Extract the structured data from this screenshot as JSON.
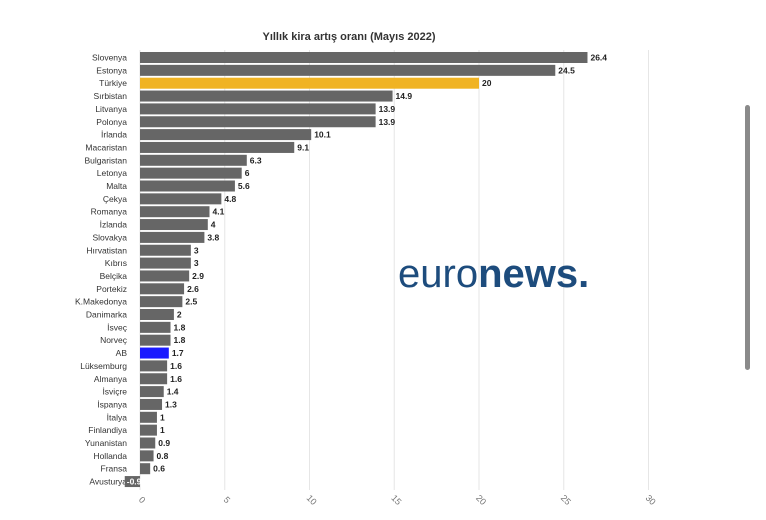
{
  "chart_data": {
    "type": "bar",
    "orientation": "horizontal",
    "title": "Yıllık kira artış oranı (Mayıs 2022)",
    "categories": [
      "Slovenya",
      "Estonya",
      "Türkiye",
      "Sırbistan",
      "Litvanya",
      "Polonya",
      "İrlanda",
      "Macaristan",
      "Bulgaristan",
      "Letonya",
      "Malta",
      "Çekya",
      "Romanya",
      "İzlanda",
      "Slovakya",
      "Hırvatistan",
      "Kıbrıs",
      "Belçika",
      "Portekiz",
      "K.Makedonya",
      "Danimarka",
      "İsveç",
      "Norveç",
      "AB",
      "Lüksemburg",
      "Almanya",
      "İsviçre",
      "İspanya",
      "İtalya",
      "Finlandiya",
      "Yunanistan",
      "Hollanda",
      "Fransa",
      "Avusturya"
    ],
    "values": [
      26.4,
      24.5,
      20,
      14.9,
      13.9,
      13.9,
      10.1,
      9.1,
      6.3,
      6,
      5.6,
      4.8,
      4.1,
      4,
      3.8,
      3,
      3,
      2.9,
      2.6,
      2.5,
      2,
      1.8,
      1.8,
      1.7,
      1.6,
      1.6,
      1.4,
      1.3,
      1,
      1,
      0.9,
      0.8,
      0.6,
      -0.9
    ],
    "value_labels": [
      "26.4",
      "24.5",
      "20",
      "14.9",
      "13.9",
      "13.9",
      "10.1",
      "9.1",
      "6.3",
      "6",
      "5.6",
      "4.8",
      "4.1",
      "4",
      "3.8",
      "3",
      "3",
      "2.9",
      "2.6",
      "2.5",
      "2",
      "1.8",
      "1.8",
      "1.7",
      "1.6",
      "1.6",
      "1.4",
      "1.3",
      "1",
      "1",
      "0.9",
      "0.8",
      "0.6",
      "-0.9"
    ],
    "xlim": [
      -1,
      30
    ],
    "xticks": [
      0,
      5,
      10,
      15,
      20,
      25,
      30
    ],
    "grid": true,
    "colors": {
      "default": "#666666",
      "Türkiye": "#f0b323",
      "AB": "#1a1aff"
    }
  },
  "logo": {
    "part1": "euro",
    "part2": "news",
    "dot": "."
  }
}
